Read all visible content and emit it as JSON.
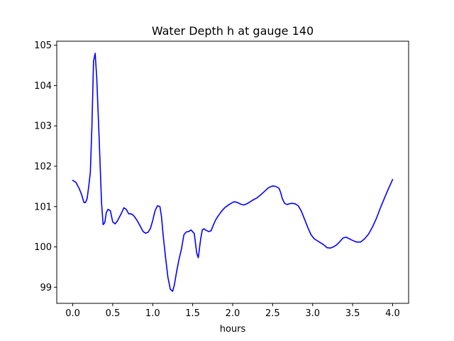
{
  "chart_data": {
    "type": "line",
    "title": "Water Depth h at gauge 140",
    "xlabel": "hours",
    "ylabel": "",
    "xlim": [
      -0.2,
      4.2
    ],
    "ylim": [
      98.6,
      105.1
    ],
    "xticks": [
      0.0,
      0.5,
      1.0,
      1.5,
      2.0,
      2.5,
      3.0,
      3.5,
      4.0
    ],
    "xtick_labels": [
      "0.0",
      "0.5",
      "1.0",
      "1.5",
      "2.0",
      "2.5",
      "3.0",
      "3.5",
      "4.0"
    ],
    "yticks": [
      99,
      100,
      101,
      102,
      103,
      104,
      105
    ],
    "ytick_labels": [
      "99",
      "100",
      "101",
      "102",
      "103",
      "104",
      "105"
    ],
    "grid": false,
    "series": [
      {
        "color": "#0000ff",
        "x": [
          0.0,
          0.04,
          0.08,
          0.11,
          0.14,
          0.16,
          0.18,
          0.2,
          0.22,
          0.24,
          0.26,
          0.28,
          0.3,
          0.33,
          0.36,
          0.38,
          0.4,
          0.42,
          0.44,
          0.47,
          0.5,
          0.53,
          0.56,
          0.6,
          0.64,
          0.67,
          0.7,
          0.73,
          0.76,
          0.8,
          0.84,
          0.88,
          0.91,
          0.94,
          0.97,
          1.0,
          1.03,
          1.06,
          1.09,
          1.11,
          1.13,
          1.16,
          1.19,
          1.22,
          1.25,
          1.27,
          1.3,
          1.33,
          1.36,
          1.39,
          1.42,
          1.45,
          1.48,
          1.52,
          1.55,
          1.57,
          1.6,
          1.62,
          1.64,
          1.66,
          1.68,
          1.7,
          1.73,
          1.76,
          1.79,
          1.82,
          1.86,
          1.9,
          1.94,
          1.98,
          2.02,
          2.06,
          2.1,
          2.14,
          2.18,
          2.22,
          2.26,
          2.3,
          2.35,
          2.4,
          2.45,
          2.5,
          2.54,
          2.58,
          2.6,
          2.62,
          2.65,
          2.68,
          2.71,
          2.74,
          2.78,
          2.82,
          2.86,
          2.9,
          2.94,
          2.98,
          3.02,
          3.06,
          3.1,
          3.14,
          3.18,
          3.22,
          3.26,
          3.3,
          3.34,
          3.38,
          3.42,
          3.46,
          3.5,
          3.55,
          3.6,
          3.65,
          3.7,
          3.75,
          3.8,
          3.85,
          3.9,
          3.95,
          4.0
        ],
        "y": [
          101.65,
          101.6,
          101.45,
          101.3,
          101.1,
          101.1,
          101.2,
          101.5,
          101.85,
          103.0,
          104.6,
          104.8,
          104.2,
          102.7,
          101.1,
          100.55,
          100.6,
          100.85,
          100.93,
          100.9,
          100.62,
          100.57,
          100.65,
          100.8,
          100.97,
          100.93,
          100.82,
          100.82,
          100.78,
          100.67,
          100.53,
          100.38,
          100.34,
          100.36,
          100.45,
          100.65,
          100.9,
          101.02,
          101.0,
          100.75,
          100.3,
          99.75,
          99.25,
          98.95,
          98.9,
          99.05,
          99.4,
          99.7,
          99.95,
          100.3,
          100.37,
          100.38,
          100.42,
          100.33,
          99.85,
          99.73,
          100.2,
          100.42,
          100.45,
          100.42,
          100.4,
          100.38,
          100.4,
          100.55,
          100.68,
          100.77,
          100.88,
          100.97,
          101.03,
          101.08,
          101.12,
          101.1,
          101.06,
          101.04,
          101.07,
          101.12,
          101.17,
          101.21,
          101.29,
          101.38,
          101.47,
          101.51,
          101.5,
          101.45,
          101.35,
          101.2,
          101.08,
          101.05,
          101.07,
          101.08,
          101.07,
          101.02,
          100.88,
          100.68,
          100.48,
          100.3,
          100.2,
          100.15,
          100.1,
          100.05,
          99.98,
          99.97,
          100.0,
          100.05,
          100.13,
          100.22,
          100.24,
          100.2,
          100.16,
          100.12,
          100.12,
          100.2,
          100.32,
          100.5,
          100.72,
          100.98,
          101.22,
          101.45,
          101.67
        ]
      }
    ]
  }
}
